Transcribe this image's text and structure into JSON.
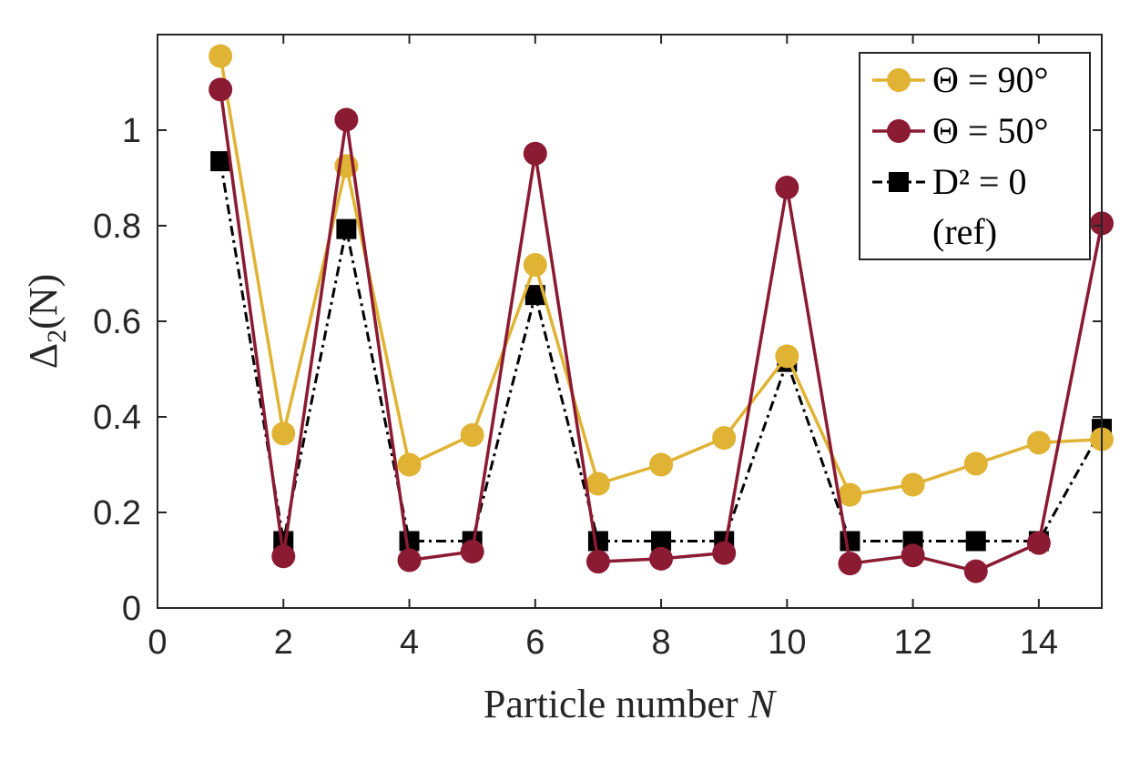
{
  "chart_data": {
    "type": "line",
    "xlabel": "Particle number N",
    "ylabel": "Δ2(N)",
    "xlim": [
      0,
      15
    ],
    "ylim": [
      0,
      1.2
    ],
    "xticks": [
      0,
      2,
      4,
      6,
      8,
      10,
      12,
      14
    ],
    "xtick_labels": [
      "0",
      "2",
      "4",
      "6",
      "8",
      "10",
      "12",
      "14"
    ],
    "yticks": [
      0,
      0.2,
      0.4,
      0.6,
      0.8,
      1
    ],
    "ytick_labels": [
      "0",
      "0.2",
      "0.4",
      "0.6",
      "0.8",
      "1"
    ],
    "grid": false,
    "legend_position": "top-right",
    "x": [
      1,
      2,
      3,
      4,
      5,
      6,
      7,
      8,
      9,
      10,
      11,
      12,
      13,
      14,
      15
    ],
    "series": [
      {
        "name": "Θ = 90°",
        "color": "#E0B334",
        "marker": "circle",
        "line": "solid",
        "values": [
          1.155,
          0.365,
          0.925,
          0.3,
          0.362,
          0.718,
          0.26,
          0.3,
          0.356,
          0.527,
          0.237,
          0.258,
          0.302,
          0.346,
          0.353
        ]
      },
      {
        "name": "Θ = 50°",
        "color": "#8B1A33",
        "marker": "circle",
        "line": "solid",
        "values": [
          1.085,
          0.108,
          1.022,
          0.1,
          0.118,
          0.951,
          0.097,
          0.103,
          0.115,
          0.88,
          0.093,
          0.11,
          0.077,
          0.136,
          0.805
        ]
      },
      {
        "name": "D² = 0",
        "name_line2": "(ref)",
        "color": "#000000",
        "marker": "square",
        "line": "dashdot",
        "values": [
          0.935,
          0.14,
          0.793,
          0.14,
          0.14,
          0.655,
          0.14,
          0.14,
          0.14,
          0.515,
          0.14,
          0.14,
          0.14,
          0.14,
          0.375
        ]
      }
    ]
  }
}
